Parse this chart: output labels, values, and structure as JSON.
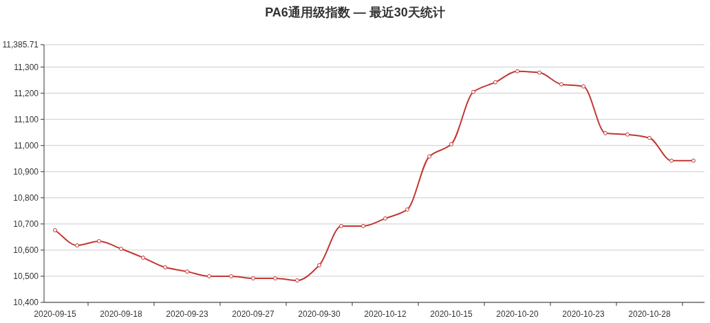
{
  "chart_data": {
    "type": "line",
    "title": "PA6通用级指数 — 最近30天统计",
    "categories": [
      "2020-09-15",
      null,
      null,
      "2020-09-18",
      null,
      null,
      "2020-09-23",
      null,
      null,
      "2020-09-27",
      null,
      null,
      "2020-09-30",
      null,
      null,
      "2020-10-12",
      null,
      null,
      "2020-10-15",
      null,
      null,
      "2020-10-20",
      null,
      null,
      "2020-10-23",
      null,
      null,
      "2020-10-28",
      null,
      null
    ],
    "series": [
      {
        "color": "#c23531",
        "values": [
          10676,
          10618,
          10634,
          10605,
          10571,
          10534,
          10518,
          10500,
          10500,
          10492,
          10492,
          10484,
          10542,
          10692,
          10692,
          10721,
          10755,
          10958,
          11005,
          11205,
          11242,
          11284,
          11279,
          11234,
          11226,
          11047,
          11042,
          11029,
          10942,
          10942
        ]
      }
    ],
    "ylim": [
      10400,
      11385.71
    ],
    "yticks": [
      {
        "value": 10400,
        "label": "10,400"
      },
      {
        "value": 10500,
        "label": "10,500"
      },
      {
        "value": 10600,
        "label": "10,600"
      },
      {
        "value": 10700,
        "label": "10,700"
      },
      {
        "value": 10800,
        "label": "10,800"
      },
      {
        "value": 10900,
        "label": "10,900"
      },
      {
        "value": 11000,
        "label": "11,000"
      },
      {
        "value": 11100,
        "label": "11,100"
      },
      {
        "value": 11200,
        "label": "11,200"
      },
      {
        "value": 11300,
        "label": "11,300"
      },
      {
        "value": 11385.71,
        "label": "11,385.71"
      }
    ],
    "grid": "y",
    "marker": "circle"
  }
}
